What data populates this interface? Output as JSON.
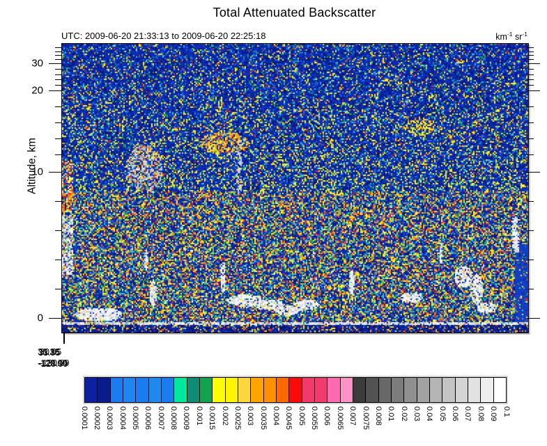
{
  "title": "Total Attenuated Backscatter",
  "subtitle": "UTC: 2009-06-20 21:33:13 to 2009-06-20 22:25:18",
  "units": {
    "u1": "km",
    "e1": "-1",
    "u2": "sr",
    "e2": "-1"
  },
  "y_axis": {
    "label": "Altitude, km",
    "ticks": [
      {
        "label": "30",
        "km": 30
      },
      {
        "label": "20",
        "km": 20
      },
      {
        "label": "10",
        "km": 10
      },
      {
        "label": "0",
        "km": 0
      }
    ]
  },
  "x_axis": {
    "overprint_line1": [
      "36.36",
      "30.05",
      "33.85"
    ],
    "overprint_line2": [
      "-120.00",
      "-130.09",
      "-128.99"
    ]
  },
  "colorbar": {
    "labels": [
      "0.0001",
      "0.0002",
      "0.0003",
      "0.0004",
      "0.0005",
      "0.0006",
      "0.0007",
      "0.0008",
      "0.0009",
      "0.001",
      "0.0015",
      "0.002",
      "0.0025",
      "0.003",
      "0.0035",
      "0.004",
      "0.0045",
      "0.005",
      "0.0055",
      "0.006",
      "0.0065",
      "0.007",
      "0.0075",
      "0.008",
      "0.01",
      "0.02",
      "0.03",
      "0.04",
      "0.05",
      "0.06",
      "0.07",
      "0.08",
      "0.09",
      "0.1"
    ],
    "colors": [
      "#0C21A2",
      "#0A1B8E",
      "#1B7CF2",
      "#1E86F0",
      "#1B7CF2",
      "#2089EE",
      "#1B7CF2",
      "#00E89C",
      "#0E8C78",
      "#12A352",
      "#FFFF00",
      "#FFF500",
      "#FFD63C",
      "#FFA400",
      "#FF9000",
      "#FF6A00",
      "#FA0A0A",
      "#F23A6C",
      "#F23A6C",
      "#FF69B4",
      "#FF93C8",
      "#3C3C3C",
      "#525252",
      "#686868",
      "#7C7C7C",
      "#909090",
      "#A2A2A2",
      "#B4B4B4",
      "#C4C4C4",
      "#D4D4D4",
      "#E2E2E2",
      "#EEEEEE",
      "#FFFFFF"
    ]
  },
  "chart_data": {
    "type": "heatmap",
    "title": "Total Attenuated Backscatter",
    "time_range_utc": "2009-06-20 21:33:13 to 2009-06-20 22:25:18",
    "units": "km^-1 sr^-1",
    "ylabel": "Altitude, km",
    "y_tick_values_km": [
      0,
      10,
      20,
      30
    ],
    "y_axis_note": "piecewise-compressed lidar altitude scale (finer resolution below ~8 km, coarser above)",
    "legend_position": "horizontal colorbar below plot",
    "colorscale_boundaries": [
      0.0001,
      0.0002,
      0.0003,
      0.0004,
      0.0005,
      0.0006,
      0.0007,
      0.0008,
      0.0009,
      0.001,
      0.0015,
      0.002,
      0.0025,
      0.003,
      0.0035,
      0.004,
      0.0045,
      0.005,
      0.0055,
      0.006,
      0.0065,
      0.007,
      0.0075,
      0.008,
      0.01,
      0.02,
      0.03,
      0.04,
      0.05,
      0.06,
      0.07,
      0.08,
      0.09,
      0.1
    ],
    "colorscale_colors": [
      "#0C21A2",
      "#0A1B8E",
      "#1B7CF2",
      "#1E86F0",
      "#1B7CF2",
      "#2089EE",
      "#1B7CF2",
      "#00E89C",
      "#0E8C78",
      "#12A352",
      "#FFFF00",
      "#FFF500",
      "#FFD63C",
      "#FFA400",
      "#FF9000",
      "#FF6A00",
      "#FA0A0A",
      "#F23A6C",
      "#F23A6C",
      "#FF69B4",
      "#FF93C8",
      "#3C3C3C",
      "#525252",
      "#686868",
      "#7C7C7C",
      "#909090",
      "#A2A2A2",
      "#B4B4B4",
      "#C4C4C4",
      "#D4D4D4",
      "#E2E2E2",
      "#EEEEEE",
      "#FFFFFF"
    ],
    "content_note": "Dense speckled backscatter curtain: sparse blue/yellow noise above ~8 km, denser multicolor (yellow/orange/red/gray) noise below ~8 km, gray aerosol plume near 10-12 km at left-center, orange patches near 13 km, white/gray boundary-layer clouds near 0-2 km, light gray surface return line near 0 km"
  }
}
